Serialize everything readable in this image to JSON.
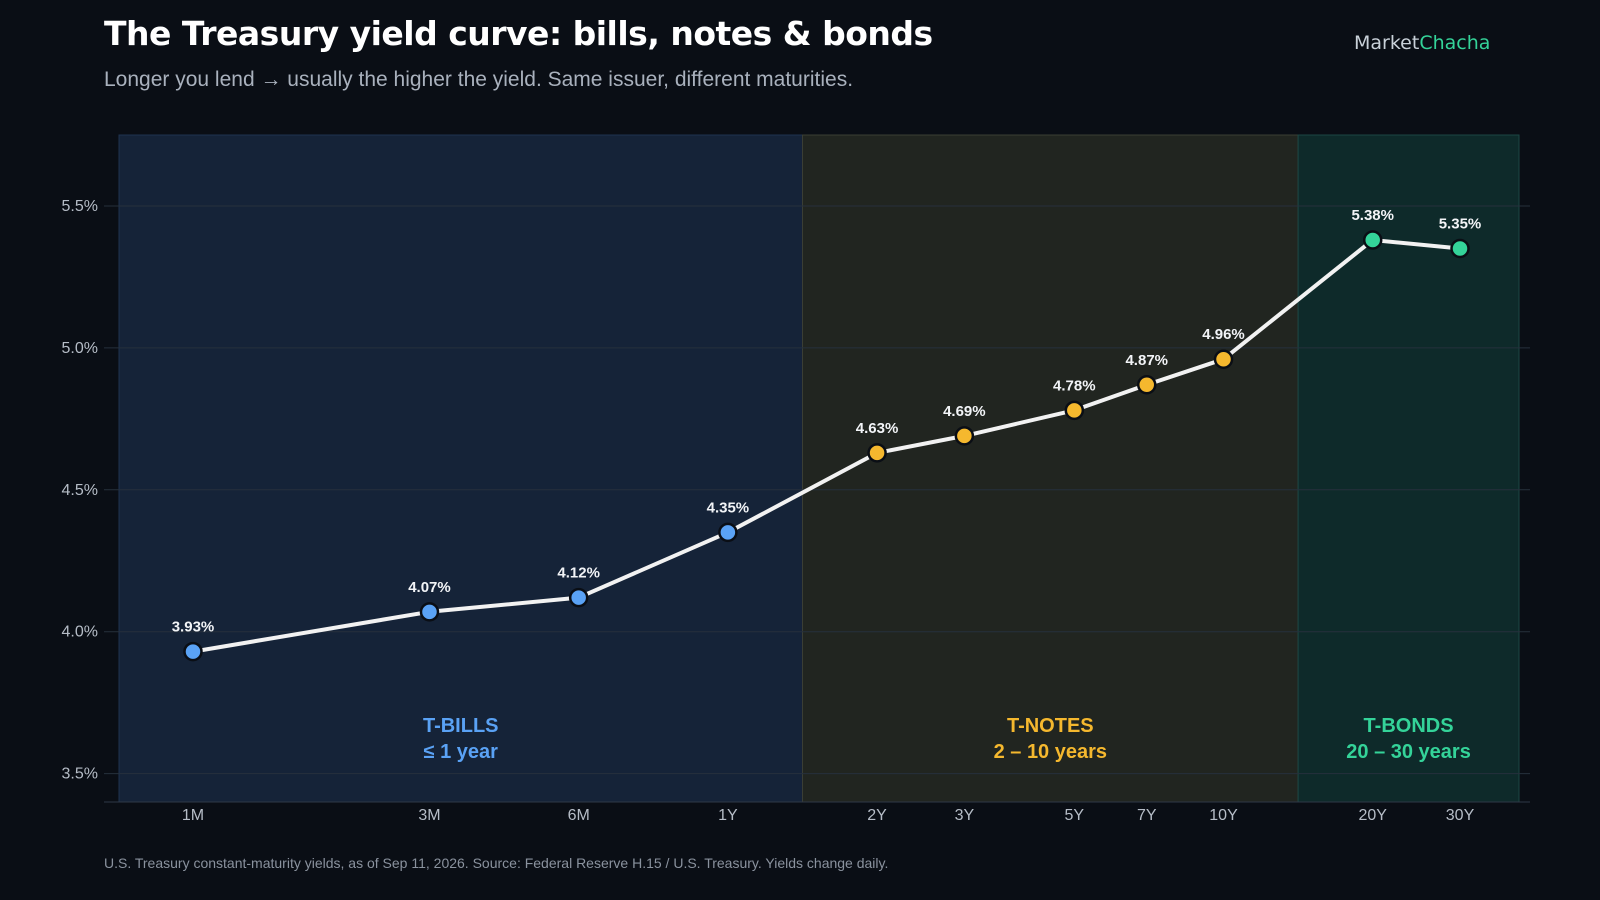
{
  "header": {
    "title": "The Treasury yield curve: bills, notes & bonds",
    "subtitle": "Longer you lend → usually the higher the yield. Same issuer, different maturities."
  },
  "brand": {
    "part1": "Market",
    "part2": "Chacha"
  },
  "footnote": "U.S. Treasury constant-maturity yields, as of Sep 11, 2026. Source: Federal Reserve H.15 / U.S. Treasury. Yields change daily.",
  "colors": {
    "bills": "#5aa2f5",
    "notes": "#f5b82e",
    "bonds": "#34d399",
    "line": "#f2f2f2",
    "grid": "#26303c",
    "tick": "#b6bdc7"
  },
  "chart_data": {
    "type": "line",
    "x": [
      "1M",
      "3M",
      "6M",
      "1Y",
      "2Y",
      "3Y",
      "5Y",
      "7Y",
      "10Y",
      "20Y",
      "30Y"
    ],
    "x_months": [
      1,
      3,
      6,
      12,
      24,
      36,
      60,
      84,
      120,
      240,
      360
    ],
    "series": [
      {
        "values": [
          3.93,
          4.07,
          4.12,
          4.35,
          4.63,
          4.69,
          4.78,
          4.87,
          4.96,
          5.38,
          5.35
        ],
        "labels": [
          "3.93%",
          "4.07%",
          "4.12%",
          "4.35%",
          "4.63%",
          "4.69%",
          "4.78%",
          "4.87%",
          "4.96%",
          "5.38%",
          "5.35%"
        ],
        "groups": [
          "bills",
          "bills",
          "bills",
          "bills",
          "notes",
          "notes",
          "notes",
          "notes",
          "notes",
          "bonds",
          "bonds"
        ]
      }
    ],
    "ylim": [
      3.4,
      5.75
    ],
    "yticks": [
      3.5,
      4.0,
      4.5,
      5.0,
      5.5
    ],
    "ytick_labels": [
      "3.5%",
      "4.0%",
      "4.5%",
      "5.0%",
      "5.5%"
    ],
    "x_scale": "log",
    "grid": true,
    "regions": [
      {
        "id": "bills",
        "name": "T-BILLS",
        "range": "≤ 1 year",
        "from": "1M",
        "to": "1Y"
      },
      {
        "id": "notes",
        "name": "T-NOTES",
        "range": "2 – 10 years",
        "from": "2Y",
        "to": "10Y"
      },
      {
        "id": "bonds",
        "name": "T-BONDS",
        "range": "20 – 30 years",
        "from": "20Y",
        "to": "30Y"
      }
    ]
  }
}
